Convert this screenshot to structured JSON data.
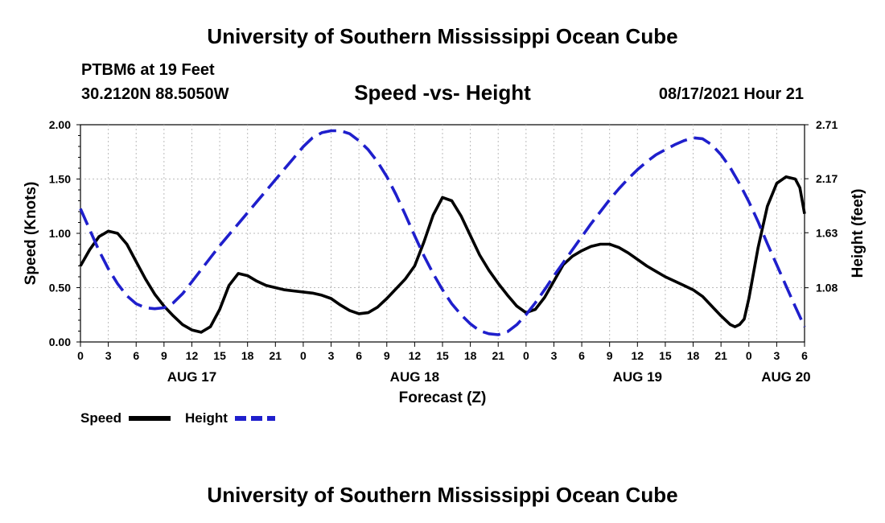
{
  "page": {
    "top_title": "University of Southern Mississippi Ocean Cube",
    "bottom_title": "University of Southern Mississippi Ocean Cube",
    "station": "PTBM6 at 19 Feet",
    "location": "30.2120N  88.5050W",
    "plot_title": "Speed -vs- Height",
    "datetime": "08/17/2021 Hour 21"
  },
  "chart_data": {
    "type": "line",
    "title": "Speed -vs- Height",
    "xlabel": "Forecast (Z)",
    "ylabel_left": "Speed (Knots)",
    "ylabel_right": "Height (feet)",
    "ylim_left": [
      0,
      2.0
    ],
    "ylim_right": [
      0.538,
      2.71
    ],
    "xlim_hours": [
      0,
      78
    ],
    "xticks": [
      {
        "h": 0,
        "label": "0"
      },
      {
        "h": 3,
        "label": "3"
      },
      {
        "h": 6,
        "label": "6"
      },
      {
        "h": 9,
        "label": "9"
      },
      {
        "h": 12,
        "label": "12"
      },
      {
        "h": 15,
        "label": "15"
      },
      {
        "h": 18,
        "label": "18"
      },
      {
        "h": 21,
        "label": "21"
      },
      {
        "h": 24,
        "label": "0"
      },
      {
        "h": 27,
        "label": "3"
      },
      {
        "h": 30,
        "label": "6"
      },
      {
        "h": 33,
        "label": "9"
      },
      {
        "h": 36,
        "label": "12"
      },
      {
        "h": 39,
        "label": "15"
      },
      {
        "h": 42,
        "label": "18"
      },
      {
        "h": 45,
        "label": "21"
      },
      {
        "h": 48,
        "label": "0"
      },
      {
        "h": 51,
        "label": "3"
      },
      {
        "h": 54,
        "label": "6"
      },
      {
        "h": 57,
        "label": "9"
      },
      {
        "h": 60,
        "label": "12"
      },
      {
        "h": 63,
        "label": "15"
      },
      {
        "h": 66,
        "label": "18"
      },
      {
        "h": 69,
        "label": "21"
      },
      {
        "h": 72,
        "label": "0"
      },
      {
        "h": 75,
        "label": "3"
      },
      {
        "h": 78,
        "label": "6"
      }
    ],
    "day_labels": [
      {
        "h": 12,
        "label": "AUG 17"
      },
      {
        "h": 36,
        "label": "AUG 18"
      },
      {
        "h": 60,
        "label": "AUG 19"
      },
      {
        "h": 76,
        "label": "AUG 20"
      }
    ],
    "yticks_left": [
      "0.00",
      "0.50",
      "1.00",
      "1.50",
      "2.00"
    ],
    "yticks_left_values": [
      0,
      0.5,
      1.0,
      1.5,
      2.0
    ],
    "yticks_right": [
      {
        "value": 1.08,
        "label": "1.08"
      },
      {
        "value": 1.63,
        "label": "1.63"
      },
      {
        "value": 2.17,
        "label": "2.17"
      },
      {
        "value": 2.71,
        "label": "2.71"
      }
    ],
    "series": [
      {
        "name": "Speed",
        "axis": "left",
        "color": "#000000",
        "style": "solid",
        "points": [
          [
            0,
            0.7
          ],
          [
            1,
            0.85
          ],
          [
            2,
            0.97
          ],
          [
            3,
            1.02
          ],
          [
            4,
            1.0
          ],
          [
            5,
            0.9
          ],
          [
            6,
            0.74
          ],
          [
            7,
            0.58
          ],
          [
            8,
            0.44
          ],
          [
            9,
            0.33
          ],
          [
            10,
            0.24
          ],
          [
            11,
            0.16
          ],
          [
            12,
            0.11
          ],
          [
            13,
            0.09
          ],
          [
            14,
            0.14
          ],
          [
            15,
            0.3
          ],
          [
            16,
            0.52
          ],
          [
            17,
            0.63
          ],
          [
            18,
            0.61
          ],
          [
            19,
            0.56
          ],
          [
            20,
            0.52
          ],
          [
            21,
            0.5
          ],
          [
            22,
            0.48
          ],
          [
            23,
            0.47
          ],
          [
            24,
            0.46
          ],
          [
            25,
            0.45
          ],
          [
            26,
            0.43
          ],
          [
            27,
            0.4
          ],
          [
            28,
            0.34
          ],
          [
            29,
            0.29
          ],
          [
            30,
            0.26
          ],
          [
            31,
            0.27
          ],
          [
            32,
            0.32
          ],
          [
            33,
            0.4
          ],
          [
            34,
            0.49
          ],
          [
            35,
            0.58
          ],
          [
            36,
            0.7
          ],
          [
            37,
            0.92
          ],
          [
            38,
            1.17
          ],
          [
            39,
            1.33
          ],
          [
            40,
            1.3
          ],
          [
            41,
            1.16
          ],
          [
            42,
            0.98
          ],
          [
            43,
            0.8
          ],
          [
            44,
            0.66
          ],
          [
            45,
            0.54
          ],
          [
            46,
            0.43
          ],
          [
            47,
            0.33
          ],
          [
            48,
            0.27
          ],
          [
            49,
            0.3
          ],
          [
            50,
            0.41
          ],
          [
            51,
            0.56
          ],
          [
            52,
            0.71
          ],
          [
            53,
            0.79
          ],
          [
            54,
            0.84
          ],
          [
            55,
            0.88
          ],
          [
            56,
            0.9
          ],
          [
            57,
            0.9
          ],
          [
            58,
            0.87
          ],
          [
            59,
            0.82
          ],
          [
            60,
            0.76
          ],
          [
            61,
            0.7
          ],
          [
            62,
            0.65
          ],
          [
            63,
            0.6
          ],
          [
            64,
            0.56
          ],
          [
            65,
            0.52
          ],
          [
            66,
            0.48
          ],
          [
            67,
            0.42
          ],
          [
            68,
            0.33
          ],
          [
            69,
            0.24
          ],
          [
            70,
            0.16
          ],
          [
            70.5,
            0.14
          ],
          [
            71,
            0.16
          ],
          [
            71.5,
            0.21
          ],
          [
            72,
            0.4
          ],
          [
            73,
            0.87
          ],
          [
            74,
            1.25
          ],
          [
            75,
            1.46
          ],
          [
            76,
            1.52
          ],
          [
            77,
            1.5
          ],
          [
            77.5,
            1.42
          ],
          [
            78,
            1.18
          ]
        ]
      },
      {
        "name": "Height",
        "axis": "right",
        "color": "#1f1fcc",
        "style": "dashed",
        "points": [
          [
            0,
            1.87
          ],
          [
            1,
            1.66
          ],
          [
            2,
            1.45
          ],
          [
            3,
            1.27
          ],
          [
            4,
            1.12
          ],
          [
            5,
            1.0
          ],
          [
            6,
            0.92
          ],
          [
            7,
            0.88
          ],
          [
            8,
            0.87
          ],
          [
            9,
            0.88
          ],
          [
            10,
            0.93
          ],
          [
            11,
            1.02
          ],
          [
            12,
            1.14
          ],
          [
            13,
            1.26
          ],
          [
            14,
            1.38
          ],
          [
            15,
            1.5
          ],
          [
            16,
            1.61
          ],
          [
            17,
            1.72
          ],
          [
            18,
            1.83
          ],
          [
            19,
            1.94
          ],
          [
            20,
            2.05
          ],
          [
            21,
            2.16
          ],
          [
            22,
            2.27
          ],
          [
            23,
            2.38
          ],
          [
            24,
            2.49
          ],
          [
            25,
            2.58
          ],
          [
            26,
            2.63
          ],
          [
            27,
            2.65
          ],
          [
            28,
            2.65
          ],
          [
            29,
            2.62
          ],
          [
            30,
            2.55
          ],
          [
            31,
            2.46
          ],
          [
            32,
            2.34
          ],
          [
            33,
            2.19
          ],
          [
            34,
            2.01
          ],
          [
            35,
            1.81
          ],
          [
            36,
            1.6
          ],
          [
            37,
            1.4
          ],
          [
            38,
            1.22
          ],
          [
            39,
            1.06
          ],
          [
            40,
            0.92
          ],
          [
            41,
            0.81
          ],
          [
            42,
            0.72
          ],
          [
            43,
            0.65
          ],
          [
            44,
            0.62
          ],
          [
            45,
            0.61
          ],
          [
            46,
            0.64
          ],
          [
            47,
            0.71
          ],
          [
            48,
            0.81
          ],
          [
            49,
            0.93
          ],
          [
            50,
            1.06
          ],
          [
            51,
            1.2
          ],
          [
            52,
            1.33
          ],
          [
            53,
            1.46
          ],
          [
            54,
            1.59
          ],
          [
            55,
            1.72
          ],
          [
            56,
            1.84
          ],
          [
            57,
            1.96
          ],
          [
            58,
            2.07
          ],
          [
            59,
            2.17
          ],
          [
            60,
            2.26
          ],
          [
            61,
            2.34
          ],
          [
            62,
            2.41
          ],
          [
            63,
            2.46
          ],
          [
            64,
            2.51
          ],
          [
            65,
            2.55
          ],
          [
            66,
            2.58
          ],
          [
            67,
            2.57
          ],
          [
            68,
            2.51
          ],
          [
            69,
            2.41
          ],
          [
            70,
            2.28
          ],
          [
            71,
            2.12
          ],
          [
            72,
            1.94
          ],
          [
            73,
            1.74
          ],
          [
            74,
            1.52
          ],
          [
            75,
            1.31
          ],
          [
            76,
            1.1
          ],
          [
            77,
            0.89
          ],
          [
            78,
            0.69
          ]
        ]
      }
    ],
    "legend": [
      {
        "label": "Speed",
        "color": "#000000",
        "style": "solid"
      },
      {
        "label": "Height",
        "color": "#1f1fcc",
        "style": "dashed"
      }
    ]
  }
}
